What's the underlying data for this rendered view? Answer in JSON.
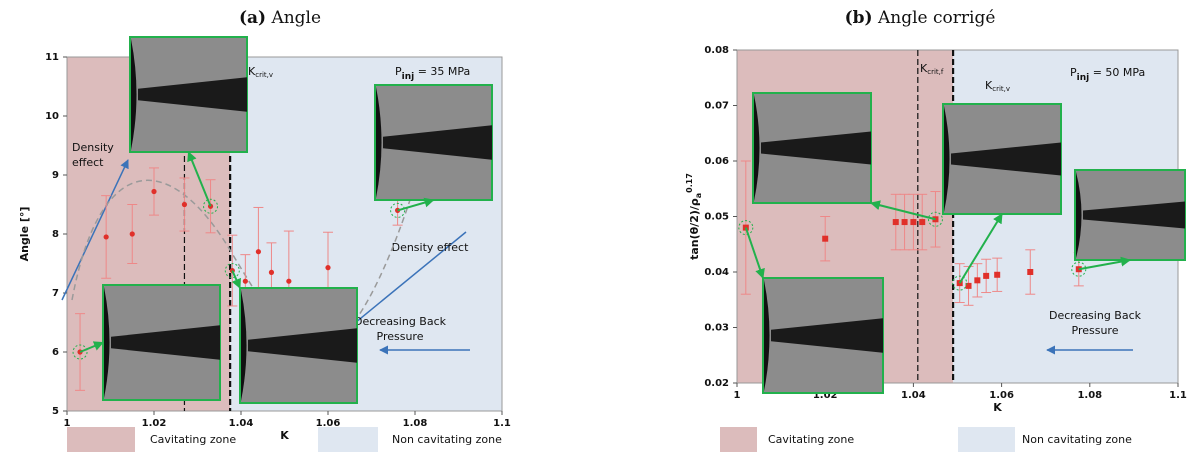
{
  "chart_data": [
    {
      "type": "scatter",
      "title_label": "(a)",
      "title": "Angle",
      "x_label": "K",
      "y_label": "Angle [°]",
      "xlim": [
        1,
        1.1
      ],
      "ylim": [
        5,
        11
      ],
      "xticks": [
        1,
        1.02,
        1.04,
        1.06,
        1.08,
        1.1
      ],
      "yticks": [
        5,
        6,
        7,
        8,
        9,
        10,
        11
      ],
      "zones": [
        {
          "name": "Cavitating zone",
          "color": "#dcbcbc",
          "xlim": [
            1,
            1.0375
          ]
        },
        {
          "name": "Non cavitating zone",
          "color": "#dfe7f1",
          "xlim": [
            1.0375,
            1.1
          ]
        }
      ],
      "vlines": [
        {
          "value": 1.027,
          "main": "K",
          "sub": "crit,f"
        },
        {
          "value": 1.0375,
          "main": "K",
          "sub": "crit,v"
        }
      ],
      "pressure": {
        "main": "P",
        "sub": "inj",
        "rest": " = 35 MPa"
      },
      "notes": [
        [
          "Density",
          "effect"
        ],
        [
          "Density effect"
        ],
        [
          "Decreasing Back",
          "Pressure"
        ]
      ],
      "series": [
        {
          "color": "#e0302a",
          "x": [
            1.003,
            1.009,
            1.015,
            1.02,
            1.027,
            1.033,
            1.038,
            1.041,
            1.044,
            1.047,
            1.051,
            1.06,
            1.076
          ],
          "values": [
            6.0,
            7.95,
            8.0,
            8.72,
            8.5,
            8.47,
            7.38,
            7.2,
            7.7,
            7.35,
            7.2,
            7.43,
            8.4
          ],
          "errors": [
            0.65,
            0.7,
            0.5,
            0.4,
            0.45,
            0.45,
            0.6,
            0.45,
            0.75,
            0.5,
            0.85,
            0.6,
            0.25
          ]
        }
      ]
    },
    {
      "type": "scatter",
      "title_label": "(b)",
      "title": "Angle corrigé",
      "x_label": "K",
      "y_label": {
        "main": "tan(θ/2)/ρ",
        "sub": "a",
        "sup": "0.17"
      },
      "xlim": [
        1,
        1.1
      ],
      "ylim": [
        0.02,
        0.08
      ],
      "xticks": [
        1,
        1.02,
        1.04,
        1.06,
        1.08,
        1.1
      ],
      "yticks": [
        0.02,
        0.03,
        0.04,
        0.05,
        0.06,
        0.07,
        0.08
      ],
      "zones": [
        {
          "name": "Cavitating zone",
          "color": "#dcbcbc",
          "xlim": [
            1,
            1.049
          ]
        },
        {
          "name": "Non cavitating zone",
          "color": "#dfe7f1",
          "xlim": [
            1.049,
            1.1
          ]
        }
      ],
      "vlines": [
        {
          "value": 1.041,
          "main": "K",
          "sub": "crit,f"
        },
        {
          "value": 1.049,
          "main": "K",
          "sub": "crit,v"
        }
      ],
      "pressure": {
        "main": "P",
        "sub": "inj",
        "rest": " = 50 MPa"
      },
      "notes": [
        [
          "Decreasing Back",
          "Pressure"
        ]
      ],
      "series": [
        {
          "color": "#e0302a",
          "x": [
            1.002,
            1.02,
            1.036,
            1.038,
            1.04,
            1.042,
            1.045,
            1.0505,
            1.0525,
            1.0545,
            1.0565,
            1.059,
            1.0665,
            1.0775
          ],
          "values": [
            0.048,
            0.046,
            0.049,
            0.049,
            0.049,
            0.049,
            0.0495,
            0.038,
            0.0375,
            0.0385,
            0.0393,
            0.0395,
            0.04,
            0.0405
          ],
          "errors": [
            0.012,
            0.004,
            0.005,
            0.005,
            0.005,
            0.005,
            0.005,
            0.0035,
            0.0035,
            0.003,
            0.003,
            0.003,
            0.004,
            0.003
          ]
        }
      ]
    }
  ]
}
